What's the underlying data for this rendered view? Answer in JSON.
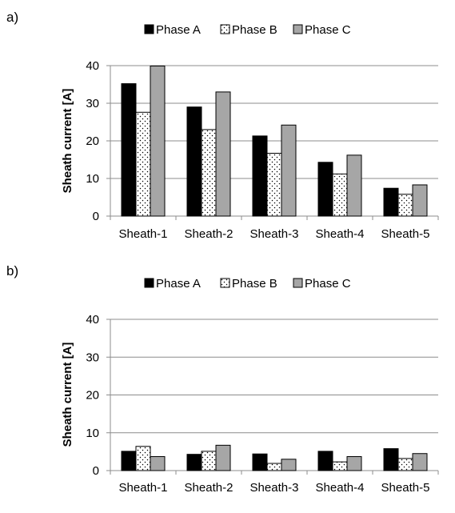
{
  "chart_data": [
    {
      "panel_label": "a)",
      "type": "bar",
      "categories": [
        "Sheath-1",
        "Sheath-2",
        "Sheath-3",
        "Sheath-4",
        "Sheath-5"
      ],
      "series": [
        {
          "name": "Phase A",
          "values": [
            35.2,
            29.0,
            21.3,
            14.3,
            7.4
          ]
        },
        {
          "name": "Phase B",
          "values": [
            27.6,
            23.0,
            16.7,
            11.2,
            5.8
          ]
        },
        {
          "name": "Phase C",
          "values": [
            39.9,
            33.0,
            24.2,
            16.2,
            8.3
          ]
        }
      ],
      "title": "",
      "xlabel": "",
      "ylabel": "Sheath current [A]",
      "ylim": [
        0,
        40
      ],
      "yticks": [
        0,
        10,
        20,
        30,
        40
      ],
      "grid": true,
      "legend_position": "top-center"
    },
    {
      "panel_label": "b)",
      "type": "bar",
      "categories": [
        "Sheath-1",
        "Sheath-2",
        "Sheath-3",
        "Sheath-4",
        "Sheath-5"
      ],
      "series": [
        {
          "name": "Phase A",
          "values": [
            5.1,
            4.3,
            4.4,
            5.1,
            5.8
          ]
        },
        {
          "name": "Phase B",
          "values": [
            6.4,
            5.1,
            1.9,
            2.3,
            3.2
          ]
        },
        {
          "name": "Phase C",
          "values": [
            3.7,
            6.7,
            3.0,
            3.7,
            4.5
          ]
        }
      ],
      "title": "",
      "xlabel": "",
      "ylabel": "Sheath current [A]",
      "ylim": [
        0,
        40
      ],
      "yticks": [
        0,
        10,
        20,
        30,
        40
      ],
      "grid": true,
      "legend_position": "top-center"
    }
  ],
  "colors": {
    "phase_a": "#000000",
    "phase_b": "#ffffff",
    "phase_c": "#a6a6a6",
    "grid": "#8c8c8c",
    "axis": "#8c8c8c"
  }
}
